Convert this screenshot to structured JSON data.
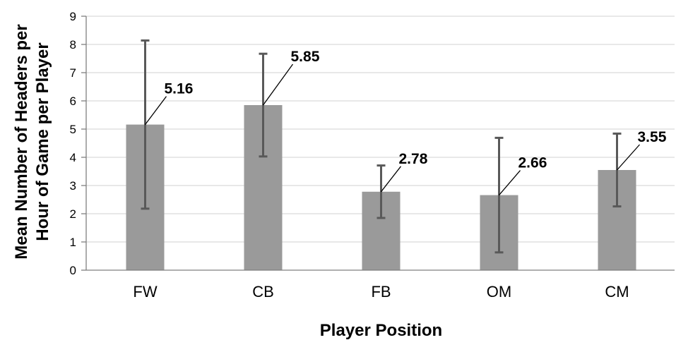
{
  "chart_data": {
    "type": "bar",
    "categories": [
      "FW",
      "CB",
      "FB",
      "OM",
      "CM"
    ],
    "values": [
      5.16,
      5.85,
      2.78,
      2.66,
      3.55
    ],
    "error_low": [
      2.18,
      4.03,
      1.85,
      0.63,
      2.26
    ],
    "error_high": [
      8.14,
      7.67,
      3.71,
      4.69,
      4.84
    ],
    "data_labels": [
      "5.16",
      "5.85",
      "2.78",
      "2.66",
      "3.55"
    ],
    "xlabel": "Player Position",
    "ylabel_lines": [
      "Mean Number of Headers per",
      "Hour of Game per Player"
    ],
    "ylim": [
      0,
      9
    ],
    "yticks": [
      "0",
      "1",
      "2",
      "3",
      "4",
      "5",
      "6",
      "7",
      "8",
      "9"
    ],
    "grid": true,
    "colors": {
      "bar": "#9a9a9a",
      "error_bar": "#595959",
      "grid": "#d9d9d9",
      "axis": "#7f7f7f"
    }
  }
}
